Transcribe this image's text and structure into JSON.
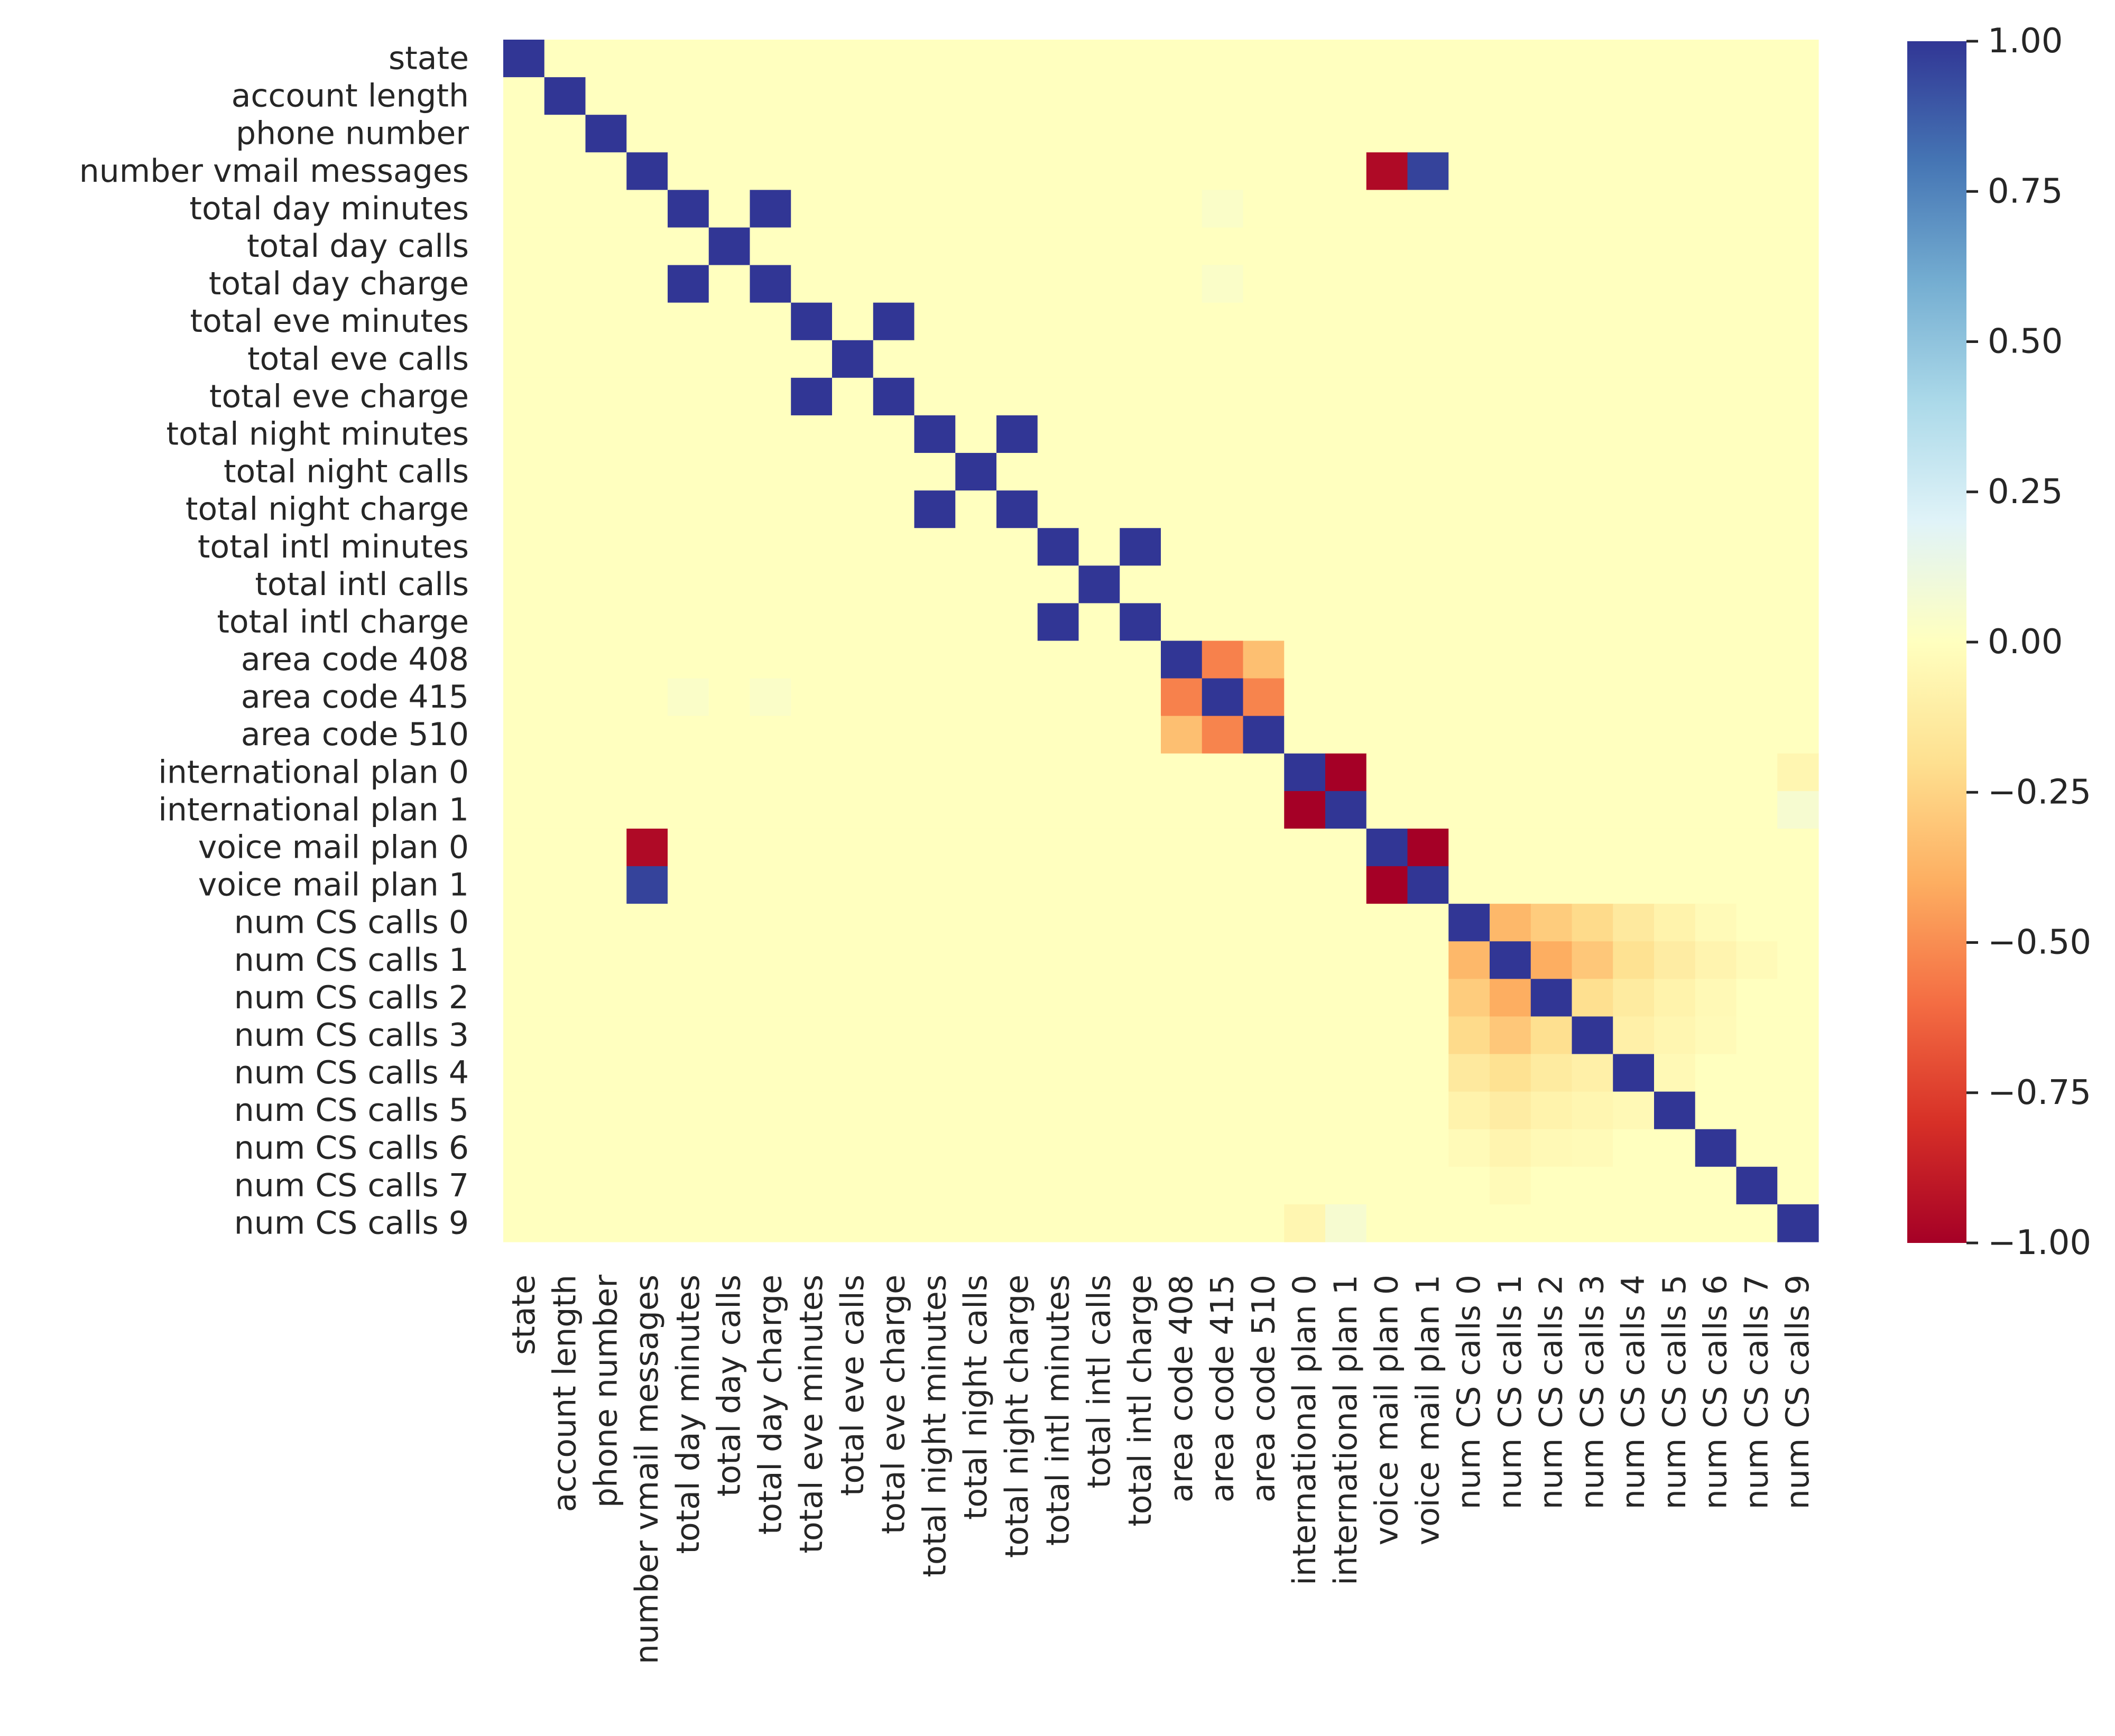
{
  "chart_data": {
    "type": "heatmap",
    "title": "",
    "xlabel": "",
    "ylabel": "",
    "labels": [
      "state",
      "account length",
      "phone number",
      "number vmail messages",
      "total day minutes",
      "total day calls",
      "total day charge",
      "total eve minutes",
      "total eve calls",
      "total eve charge",
      "total night minutes",
      "total night calls",
      "total night charge",
      "total intl minutes",
      "total intl calls",
      "total intl charge",
      "area code 408",
      "area code 415",
      "area code 510",
      "international plan 0",
      "international plan 1",
      "voice mail plan 0",
      "voice mail plan 1",
      "num CS calls 0",
      "num CS calls 1",
      "num CS calls 2",
      "num CS calls 3",
      "num CS calls 4",
      "num CS calls 5",
      "num CS calls 6",
      "num CS calls 7",
      "num CS calls 9"
    ],
    "default_value": 0.0,
    "nonzero_cells": [
      {
        "row": "state",
        "col": "state",
        "value": 1.0
      },
      {
        "row": "account length",
        "col": "account length",
        "value": 1.0
      },
      {
        "row": "phone number",
        "col": "phone number",
        "value": 1.0
      },
      {
        "row": "number vmail messages",
        "col": "number vmail messages",
        "value": 1.0
      },
      {
        "row": "number vmail messages",
        "col": "voice mail plan 0",
        "value": -0.96
      },
      {
        "row": "number vmail messages",
        "col": "voice mail plan 1",
        "value": 0.96
      },
      {
        "row": "total day minutes",
        "col": "total day minutes",
        "value": 1.0
      },
      {
        "row": "total day minutes",
        "col": "total day charge",
        "value": 1.0
      },
      {
        "row": "total day minutes",
        "col": "area code 415",
        "value": 0.03
      },
      {
        "row": "total day calls",
        "col": "total day calls",
        "value": 1.0
      },
      {
        "row": "total day charge",
        "col": "total day minutes",
        "value": 1.0
      },
      {
        "row": "total day charge",
        "col": "total day charge",
        "value": 1.0
      },
      {
        "row": "total day charge",
        "col": "area code 415",
        "value": 0.03
      },
      {
        "row": "total eve minutes",
        "col": "total eve minutes",
        "value": 1.0
      },
      {
        "row": "total eve minutes",
        "col": "total eve charge",
        "value": 1.0
      },
      {
        "row": "total eve calls",
        "col": "total eve calls",
        "value": 1.0
      },
      {
        "row": "total eve charge",
        "col": "total eve minutes",
        "value": 1.0
      },
      {
        "row": "total eve charge",
        "col": "total eve charge",
        "value": 1.0
      },
      {
        "row": "total night minutes",
        "col": "total night minutes",
        "value": 1.0
      },
      {
        "row": "total night minutes",
        "col": "total night charge",
        "value": 1.0
      },
      {
        "row": "total night calls",
        "col": "total night calls",
        "value": 1.0
      },
      {
        "row": "total night charge",
        "col": "total night minutes",
        "value": 1.0
      },
      {
        "row": "total night charge",
        "col": "total night charge",
        "value": 1.0
      },
      {
        "row": "total intl minutes",
        "col": "total intl minutes",
        "value": 1.0
      },
      {
        "row": "total intl minutes",
        "col": "total intl charge",
        "value": 1.0
      },
      {
        "row": "total intl calls",
        "col": "total intl calls",
        "value": 1.0
      },
      {
        "row": "total intl charge",
        "col": "total intl minutes",
        "value": 1.0
      },
      {
        "row": "total intl charge",
        "col": "total intl charge",
        "value": 1.0
      },
      {
        "row": "area code 408",
        "col": "area code 408",
        "value": 1.0
      },
      {
        "row": "area code 408",
        "col": "area code 415",
        "value": -0.54
      },
      {
        "row": "area code 408",
        "col": "area code 510",
        "value": -0.33
      },
      {
        "row": "area code 415",
        "col": "total day minutes",
        "value": 0.03
      },
      {
        "row": "area code 415",
        "col": "total day charge",
        "value": 0.03
      },
      {
        "row": "area code 415",
        "col": "area code 408",
        "value": -0.54
      },
      {
        "row": "area code 415",
        "col": "area code 415",
        "value": 1.0
      },
      {
        "row": "area code 415",
        "col": "area code 510",
        "value": -0.53
      },
      {
        "row": "area code 510",
        "col": "area code 408",
        "value": -0.33
      },
      {
        "row": "area code 510",
        "col": "area code 415",
        "value": -0.53
      },
      {
        "row": "area code 510",
        "col": "area code 510",
        "value": 1.0
      },
      {
        "row": "international plan 0",
        "col": "international plan 0",
        "value": 1.0
      },
      {
        "row": "international plan 0",
        "col": "international plan 1",
        "value": -1.0
      },
      {
        "row": "international plan 0",
        "col": "num CS calls 9",
        "value": -0.06
      },
      {
        "row": "international plan 1",
        "col": "international plan 0",
        "value": -1.0
      },
      {
        "row": "international plan 1",
        "col": "international plan 1",
        "value": 1.0
      },
      {
        "row": "international plan 1",
        "col": "num CS calls 9",
        "value": 0.06
      },
      {
        "row": "voice mail plan 0",
        "col": "number vmail messages",
        "value": -0.96
      },
      {
        "row": "voice mail plan 0",
        "col": "voice mail plan 0",
        "value": 1.0
      },
      {
        "row": "voice mail plan 0",
        "col": "voice mail plan 1",
        "value": -1.0
      },
      {
        "row": "voice mail plan 1",
        "col": "number vmail messages",
        "value": 0.96
      },
      {
        "row": "voice mail plan 1",
        "col": "voice mail plan 0",
        "value": -1.0
      },
      {
        "row": "voice mail plan 1",
        "col": "voice mail plan 1",
        "value": 1.0
      },
      {
        "row": "num CS calls 0",
        "col": "num CS calls 0",
        "value": 1.0
      },
      {
        "row": "num CS calls 0",
        "col": "num CS calls 1",
        "value": -0.36
      },
      {
        "row": "num CS calls 0",
        "col": "num CS calls 2",
        "value": -0.28
      },
      {
        "row": "num CS calls 0",
        "col": "num CS calls 3",
        "value": -0.22
      },
      {
        "row": "num CS calls 0",
        "col": "num CS calls 4",
        "value": -0.14
      },
      {
        "row": "num CS calls 0",
        "col": "num CS calls 5",
        "value": -0.08
      },
      {
        "row": "num CS calls 0",
        "col": "num CS calls 6",
        "value": -0.03
      },
      {
        "row": "num CS calls 1",
        "col": "num CS calls 0",
        "value": -0.36
      },
      {
        "row": "num CS calls 1",
        "col": "num CS calls 1",
        "value": 1.0
      },
      {
        "row": "num CS calls 1",
        "col": "num CS calls 2",
        "value": -0.4
      },
      {
        "row": "num CS calls 1",
        "col": "num CS calls 3",
        "value": -0.3
      },
      {
        "row": "num CS calls 1",
        "col": "num CS calls 4",
        "value": -0.19
      },
      {
        "row": "num CS calls 1",
        "col": "num CS calls 5",
        "value": -0.12
      },
      {
        "row": "num CS calls 1",
        "col": "num CS calls 6",
        "value": -0.07
      },
      {
        "row": "num CS calls 1",
        "col": "num CS calls 7",
        "value": -0.03
      },
      {
        "row": "num CS calls 2",
        "col": "num CS calls 0",
        "value": -0.28
      },
      {
        "row": "num CS calls 2",
        "col": "num CS calls 1",
        "value": -0.4
      },
      {
        "row": "num CS calls 2",
        "col": "num CS calls 2",
        "value": 1.0
      },
      {
        "row": "num CS calls 2",
        "col": "num CS calls 3",
        "value": -0.2
      },
      {
        "row": "num CS calls 2",
        "col": "num CS calls 4",
        "value": -0.13
      },
      {
        "row": "num CS calls 2",
        "col": "num CS calls 5",
        "value": -0.08
      },
      {
        "row": "num CS calls 2",
        "col": "num CS calls 6",
        "value": -0.04
      },
      {
        "row": "num CS calls 3",
        "col": "num CS calls 0",
        "value": -0.22
      },
      {
        "row": "num CS calls 3",
        "col": "num CS calls 1",
        "value": -0.3
      },
      {
        "row": "num CS calls 3",
        "col": "num CS calls 2",
        "value": -0.2
      },
      {
        "row": "num CS calls 3",
        "col": "num CS calls 3",
        "value": 1.0
      },
      {
        "row": "num CS calls 3",
        "col": "num CS calls 4",
        "value": -0.1
      },
      {
        "row": "num CS calls 3",
        "col": "num CS calls 5",
        "value": -0.06
      },
      {
        "row": "num CS calls 3",
        "col": "num CS calls 6",
        "value": -0.03
      },
      {
        "row": "num CS calls 4",
        "col": "num CS calls 0",
        "value": -0.14
      },
      {
        "row": "num CS calls 4",
        "col": "num CS calls 1",
        "value": -0.19
      },
      {
        "row": "num CS calls 4",
        "col": "num CS calls 2",
        "value": -0.13
      },
      {
        "row": "num CS calls 4",
        "col": "num CS calls 3",
        "value": -0.1
      },
      {
        "row": "num CS calls 4",
        "col": "num CS calls 4",
        "value": 1.0
      },
      {
        "row": "num CS calls 4",
        "col": "num CS calls 5",
        "value": -0.04
      },
      {
        "row": "num CS calls 5",
        "col": "num CS calls 0",
        "value": -0.08
      },
      {
        "row": "num CS calls 5",
        "col": "num CS calls 1",
        "value": -0.12
      },
      {
        "row": "num CS calls 5",
        "col": "num CS calls 2",
        "value": -0.08
      },
      {
        "row": "num CS calls 5",
        "col": "num CS calls 3",
        "value": -0.06
      },
      {
        "row": "num CS calls 5",
        "col": "num CS calls 4",
        "value": -0.04
      },
      {
        "row": "num CS calls 5",
        "col": "num CS calls 5",
        "value": 1.0
      },
      {
        "row": "num CS calls 6",
        "col": "num CS calls 0",
        "value": -0.03
      },
      {
        "row": "num CS calls 6",
        "col": "num CS calls 1",
        "value": -0.07
      },
      {
        "row": "num CS calls 6",
        "col": "num CS calls 2",
        "value": -0.04
      },
      {
        "row": "num CS calls 6",
        "col": "num CS calls 3",
        "value": -0.03
      },
      {
        "row": "num CS calls 6",
        "col": "num CS calls 6",
        "value": 1.0
      },
      {
        "row": "num CS calls 7",
        "col": "num CS calls 1",
        "value": -0.03
      },
      {
        "row": "num CS calls 7",
        "col": "num CS calls 7",
        "value": 1.0
      },
      {
        "row": "num CS calls 9",
        "col": "international plan 0",
        "value": -0.06
      },
      {
        "row": "num CS calls 9",
        "col": "international plan 1",
        "value": 0.06
      },
      {
        "row": "num CS calls 9",
        "col": "num CS calls 9",
        "value": 1.0
      }
    ],
    "colorbar": {
      "colormap": "RdYlBu",
      "vmin": -1.0,
      "vmax": 1.0,
      "ticks": [
        1.0,
        0.75,
        0.5,
        0.25,
        0.0,
        -0.25,
        -0.5,
        -0.75,
        -1.0
      ],
      "tick_labels": [
        "1.00",
        "0.75",
        "0.50",
        "0.25",
        "0.00",
        "−0.25",
        "−0.50",
        "−0.75",
        "−1.00"
      ]
    },
    "grid": false,
    "legend": "colorbar-right"
  },
  "colors": {
    "RdYlBu_stops": [
      "#a50026",
      "#d73027",
      "#f46d43",
      "#fdae61",
      "#fee090",
      "#ffffbf",
      "#e0f3f8",
      "#abd9e9",
      "#74add1",
      "#4575b4",
      "#313695"
    ],
    "text": "#262626",
    "background": "#ffffff"
  }
}
